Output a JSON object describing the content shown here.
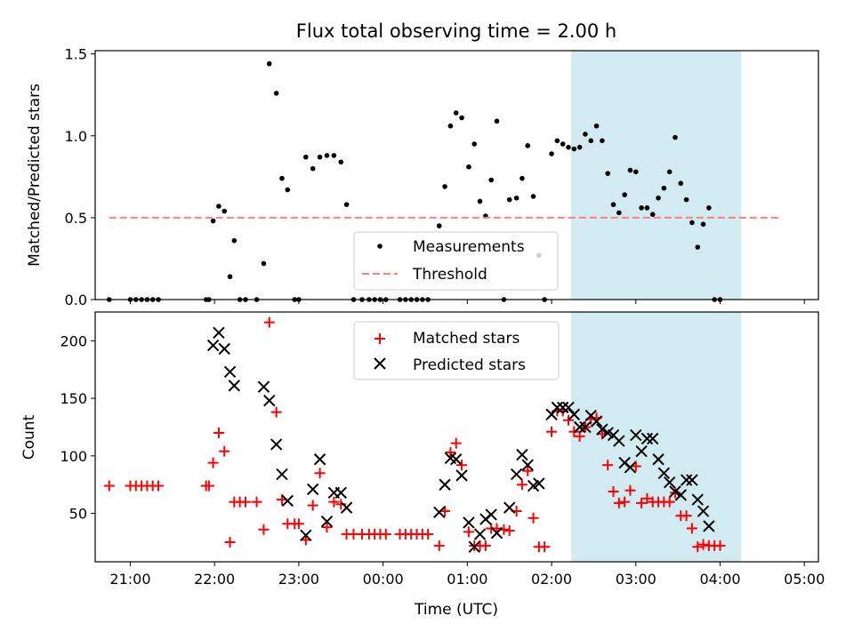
{
  "chart_data": [
    {
      "type": "scatter",
      "title": "Flux total observing time = 2.00 h",
      "xlabel": "",
      "ylabel": "Matched/Predicted stars",
      "xlim": [
        "20:35",
        "05:10"
      ],
      "ylim": [
        0,
        1.52
      ],
      "xticks": [
        "21:00",
        "22:00",
        "23:00",
        "00:00",
        "01:00",
        "02:00",
        "03:00",
        "04:00",
        "05:00"
      ],
      "xticks_labeled": false,
      "yticks": [
        0.0,
        0.5,
        1.0,
        1.5
      ],
      "ytick_labels": [
        "0.0",
        "0.5",
        "1.0",
        "1.5"
      ],
      "grid": false,
      "legend_position": "lower-center",
      "highlight_span": {
        "start": "02:14",
        "end": "04:15",
        "color": "#add8e6"
      },
      "series": [
        {
          "name": "Measurements",
          "kind": "points",
          "color": "#000000",
          "points": [
            [
              "20:45",
              0.0
            ],
            [
              "21:00",
              0.0
            ],
            [
              "21:04",
              0.0
            ],
            [
              "21:08",
              0.0
            ],
            [
              "21:12",
              0.0
            ],
            [
              "21:16",
              0.0
            ],
            [
              "21:20",
              0.0
            ],
            [
              "21:54",
              0.0
            ],
            [
              "21:56",
              0.0
            ],
            [
              "21:59",
              0.48
            ],
            [
              "22:03",
              0.57
            ],
            [
              "22:07",
              0.54
            ],
            [
              "22:11",
              0.14
            ],
            [
              "22:14",
              0.36
            ],
            [
              "22:18",
              0.0
            ],
            [
              "22:22",
              0.0
            ],
            [
              "22:30",
              0.0
            ],
            [
              "22:35",
              0.22
            ],
            [
              "22:39",
              1.44
            ],
            [
              "22:44",
              1.26
            ],
            [
              "22:48",
              0.74
            ],
            [
              "22:52",
              0.67
            ],
            [
              "22:57",
              0.0
            ],
            [
              "23:00",
              0.0
            ],
            [
              "23:05",
              0.87
            ],
            [
              "23:10",
              0.8
            ],
            [
              "23:15",
              0.87
            ],
            [
              "23:20",
              0.88
            ],
            [
              "23:25",
              0.88
            ],
            [
              "23:30",
              0.84
            ],
            [
              "23:34",
              0.58
            ],
            [
              "23:39",
              0.0
            ],
            [
              "23:45",
              0.0
            ],
            [
              "23:50",
              0.0
            ],
            [
              "23:54",
              0.0
            ],
            [
              "23:58",
              0.0
            ],
            [
              "00:02",
              0.0
            ],
            [
              "00:12",
              0.0
            ],
            [
              "00:16",
              0.0
            ],
            [
              "00:20",
              0.0
            ],
            [
              "00:24",
              0.0
            ],
            [
              "00:28",
              0.0
            ],
            [
              "00:32",
              0.0
            ],
            [
              "00:40",
              0.45
            ],
            [
              "00:44",
              0.69
            ],
            [
              "00:48",
              1.06
            ],
            [
              "00:52",
              1.14
            ],
            [
              "00:56",
              1.11
            ],
            [
              "01:01",
              0.81
            ],
            [
              "01:05",
              0.95
            ],
            [
              "01:09",
              0.6
            ],
            [
              "01:13",
              0.51
            ],
            [
              "01:17",
              0.73
            ],
            [
              "01:21",
              1.09
            ],
            [
              "01:26",
              0.0
            ],
            [
              "01:30",
              0.61
            ],
            [
              "01:35",
              0.62
            ],
            [
              "01:39",
              0.74
            ],
            [
              "01:43",
              0.94
            ],
            [
              "01:47",
              0.63
            ],
            [
              "01:51",
              0.27
            ],
            [
              "01:55",
              0.0
            ],
            [
              "02:00",
              0.89
            ],
            [
              "02:04",
              0.97
            ],
            [
              "02:08",
              0.95
            ],
            [
              "02:12",
              0.93
            ],
            [
              "02:16",
              0.92
            ],
            [
              "02:20",
              0.93
            ],
            [
              "02:24",
              1.01
            ],
            [
              "02:28",
              0.97
            ],
            [
              "02:32",
              1.06
            ],
            [
              "02:36",
              0.97
            ],
            [
              "02:40",
              0.77
            ],
            [
              "02:44",
              0.58
            ],
            [
              "02:48",
              0.53
            ],
            [
              "02:52",
              0.64
            ],
            [
              "02:56",
              0.79
            ],
            [
              "03:00",
              0.78
            ],
            [
              "03:04",
              0.56
            ],
            [
              "03:08",
              0.56
            ],
            [
              "03:12",
              0.52
            ],
            [
              "03:16",
              0.62
            ],
            [
              "03:20",
              0.68
            ],
            [
              "03:24",
              0.78
            ],
            [
              "03:28",
              0.99
            ],
            [
              "03:32",
              0.71
            ],
            [
              "03:36",
              0.61
            ],
            [
              "03:40",
              0.47
            ],
            [
              "03:44",
              0.32
            ],
            [
              "03:48",
              0.46
            ],
            [
              "03:52",
              0.56
            ],
            [
              "03:56",
              0.0
            ],
            [
              "04:00",
              0.0
            ]
          ]
        },
        {
          "name": "Threshold",
          "kind": "dashed-line",
          "color": "#ff7f7f",
          "points": [
            [
              "20:45",
              0.5
            ],
            [
              "04:42",
              0.5
            ]
          ]
        }
      ]
    },
    {
      "type": "scatter",
      "title": "",
      "xlabel": "Time (UTC)",
      "ylabel": "Count",
      "xlim": [
        "20:35",
        "05:10"
      ],
      "ylim": [
        8,
        225
      ],
      "xticks": [
        "21:00",
        "22:00",
        "23:00",
        "00:00",
        "01:00",
        "02:00",
        "03:00",
        "04:00",
        "05:00"
      ],
      "xtick_labels": [
        "21:00",
        "22:00",
        "23:00",
        "00:00",
        "01:00",
        "02:00",
        "03:00",
        "04:00",
        "05:00"
      ],
      "yticks": [
        50,
        100,
        150,
        200
      ],
      "ytick_labels": [
        "50",
        "100",
        "150",
        "200"
      ],
      "grid": false,
      "legend_position": "upper-center",
      "highlight_span": {
        "start": "02:14",
        "end": "04:15",
        "color": "#add8e6"
      },
      "series": [
        {
          "name": "Matched stars",
          "marker": "plus",
          "color": "#ff0000",
          "points": [
            [
              "20:45",
              74
            ],
            [
              "21:00",
              74
            ],
            [
              "21:04",
              74
            ],
            [
              "21:08",
              74
            ],
            [
              "21:12",
              74
            ],
            [
              "21:16",
              74
            ],
            [
              "21:20",
              74
            ],
            [
              "21:54",
              74
            ],
            [
              "21:56",
              74
            ],
            [
              "21:59",
              94
            ],
            [
              "22:03",
              120
            ],
            [
              "22:07",
              104
            ],
            [
              "22:11",
              25
            ],
            [
              "22:14",
              60
            ],
            [
              "22:18",
              60
            ],
            [
              "22:22",
              60
            ],
            [
              "22:30",
              60
            ],
            [
              "22:35",
              36
            ],
            [
              "22:39",
              216
            ],
            [
              "22:44",
              138
            ],
            [
              "22:48",
              62
            ],
            [
              "22:52",
              41
            ],
            [
              "22:57",
              41
            ],
            [
              "23:00",
              41
            ],
            [
              "23:05",
              27
            ],
            [
              "23:10",
              57
            ],
            [
              "23:15",
              85
            ],
            [
              "23:20",
              38
            ],
            [
              "23:25",
              60
            ],
            [
              "23:30",
              58
            ],
            [
              "23:34",
              32
            ],
            [
              "23:39",
              32
            ],
            [
              "23:45",
              32
            ],
            [
              "23:50",
              32
            ],
            [
              "23:54",
              32
            ],
            [
              "23:58",
              32
            ],
            [
              "00:02",
              32
            ],
            [
              "00:12",
              32
            ],
            [
              "00:16",
              32
            ],
            [
              "00:20",
              32
            ],
            [
              "00:24",
              32
            ],
            [
              "00:28",
              32
            ],
            [
              "00:32",
              32
            ],
            [
              "00:40",
              22
            ],
            [
              "00:44",
              52
            ],
            [
              "00:48",
              103
            ],
            [
              "00:52",
              111
            ],
            [
              "00:56",
              92
            ],
            [
              "01:01",
              34
            ],
            [
              "01:05",
              22
            ],
            [
              "01:09",
              22
            ],
            [
              "01:13",
              22
            ],
            [
              "01:17",
              37
            ],
            [
              "01:21",
              37
            ],
            [
              "01:26",
              36
            ],
            [
              "01:30",
              35
            ],
            [
              "01:35",
              52
            ],
            [
              "01:39",
              75
            ],
            [
              "01:43",
              87
            ],
            [
              "01:47",
              46
            ],
            [
              "01:51",
              21
            ],
            [
              "01:55",
              21
            ],
            [
              "02:00",
              121
            ],
            [
              "02:04",
              139
            ],
            [
              "02:08",
              139
            ],
            [
              "02:12",
              131
            ],
            [
              "02:16",
              121
            ],
            [
              "02:20",
              117
            ],
            [
              "02:24",
              125
            ],
            [
              "02:28",
              132
            ],
            [
              "02:32",
              133
            ],
            [
              "02:36",
              119
            ],
            [
              "02:40",
              92
            ],
            [
              "02:44",
              69
            ],
            [
              "02:48",
              59
            ],
            [
              "02:52",
              60
            ],
            [
              "02:56",
              70
            ],
            [
              "03:00",
              91
            ],
            [
              "03:04",
              59
            ],
            [
              "03:08",
              63
            ],
            [
              "03:12",
              60
            ],
            [
              "03:16",
              60
            ],
            [
              "03:20",
              60
            ],
            [
              "03:24",
              60
            ],
            [
              "03:28",
              68
            ],
            [
              "03:32",
              48
            ],
            [
              "03:36",
              48
            ],
            [
              "03:40",
              37
            ],
            [
              "03:44",
              21
            ],
            [
              "03:48",
              23
            ],
            [
              "03:52",
              22
            ],
            [
              "03:56",
              22
            ],
            [
              "04:00",
              22
            ]
          ]
        },
        {
          "name": "Predicted stars",
          "marker": "x",
          "color": "#000000",
          "points": [
            [
              "21:59",
              196
            ],
            [
              "22:03",
              207
            ],
            [
              "22:07",
              193
            ],
            [
              "22:11",
              173
            ],
            [
              "22:14",
              161
            ],
            [
              "22:35",
              160
            ],
            [
              "22:39",
              148
            ],
            [
              "22:44",
              110
            ],
            [
              "22:48",
              84
            ],
            [
              "22:52",
              61
            ],
            [
              "23:05",
              31
            ],
            [
              "23:10",
              71
            ],
            [
              "23:15",
              97
            ],
            [
              "23:20",
              43
            ],
            [
              "23:25",
              68
            ],
            [
              "23:30",
              68
            ],
            [
              "23:34",
              55
            ],
            [
              "00:40",
              51
            ],
            [
              "00:44",
              75
            ],
            [
              "00:48",
              98
            ],
            [
              "00:52",
              97
            ],
            [
              "00:56",
              83
            ],
            [
              "01:01",
              42
            ],
            [
              "01:05",
              21
            ],
            [
              "01:09",
              32
            ],
            [
              "01:13",
              45
            ],
            [
              "01:17",
              49
            ],
            [
              "01:21",
              33
            ],
            [
              "01:30",
              55
            ],
            [
              "01:35",
              84
            ],
            [
              "01:39",
              101
            ],
            [
              "01:43",
              92
            ],
            [
              "01:47",
              74
            ],
            [
              "01:51",
              76
            ],
            [
              "02:00",
              136
            ],
            [
              "02:04",
              142
            ],
            [
              "02:08",
              142
            ],
            [
              "02:12",
              142
            ],
            [
              "02:16",
              136
            ],
            [
              "02:20",
              125
            ],
            [
              "02:24",
              125
            ],
            [
              "02:28",
              135
            ],
            [
              "02:32",
              130
            ],
            [
              "02:36",
              123
            ],
            [
              "02:40",
              120
            ],
            [
              "02:44",
              118
            ],
            [
              "02:48",
              113
            ],
            [
              "02:52",
              94
            ],
            [
              "02:56",
              90
            ],
            [
              "03:00",
              118
            ],
            [
              "03:04",
              104
            ],
            [
              "03:08",
              115
            ],
            [
              "03:12",
              115
            ],
            [
              "03:16",
              97
            ],
            [
              "03:20",
              85
            ],
            [
              "03:24",
              77
            ],
            [
              "03:28",
              69
            ],
            [
              "03:32",
              66
            ],
            [
              "03:36",
              79
            ],
            [
              "03:40",
              79
            ],
            [
              "03:44",
              62
            ],
            [
              "03:48",
              52
            ],
            [
              "03:52",
              39
            ]
          ]
        }
      ]
    }
  ]
}
